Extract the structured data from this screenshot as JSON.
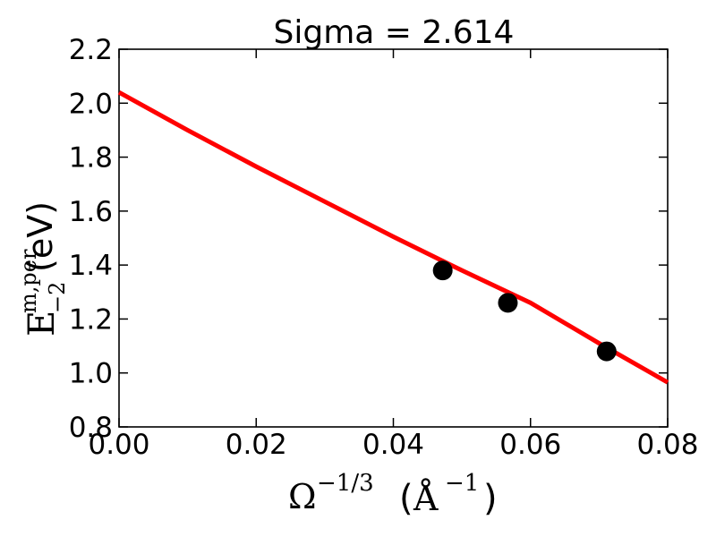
{
  "chart_data": {
    "type": "scatter",
    "title": "Sigma = 2.614",
    "xlabel": {
      "base": "Ω",
      "sup": "−1/3",
      "unit_open": "(",
      "unit_base": "Å",
      "unit_sup": "−1",
      "unit_close": ")"
    },
    "ylabel": {
      "base": "E",
      "sup": "m,per",
      "sub": "−2",
      "unit": "(eV)"
    },
    "xlim": [
      0.0,
      0.08
    ],
    "ylim": [
      0.8,
      2.2
    ],
    "xticks": [
      0.0,
      0.02,
      0.04,
      0.06,
      0.08
    ],
    "xtick_labels": [
      "0.00",
      "0.02",
      "0.04",
      "0.06",
      "0.08"
    ],
    "yticks": [
      0.8,
      1.0,
      1.2,
      1.4,
      1.6,
      1.8,
      2.0,
      2.2
    ],
    "ytick_labels": [
      "0.8",
      "1.0",
      "1.2",
      "1.4",
      "1.6",
      "1.8",
      "2.0",
      "2.2"
    ],
    "grid": false,
    "points": {
      "x": [
        0.0472,
        0.0567,
        0.0711
      ],
      "y": [
        1.38,
        1.26,
        1.08
      ],
      "color": "#000000"
    },
    "fit_line": {
      "x": [
        0.0,
        0.01,
        0.02,
        0.03,
        0.04,
        0.05,
        0.06,
        0.07,
        0.08
      ],
      "y": [
        2.04,
        1.9,
        1.765,
        1.635,
        1.505,
        1.38,
        1.26,
        1.11,
        0.965
      ],
      "color": "#ff0000"
    }
  }
}
